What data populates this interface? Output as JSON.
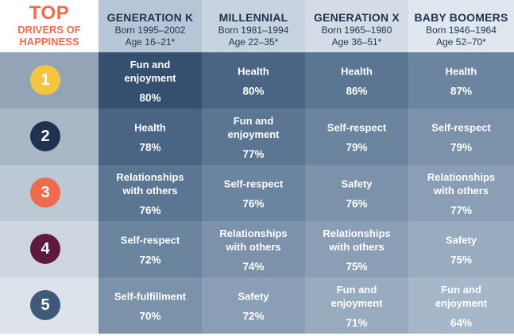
{
  "title": {
    "top": "TOP",
    "line1": "DRIVERS OF",
    "line2": "HAPPINESS"
  },
  "columns": [
    {
      "name": "GENERATION K",
      "born": "Born 1995–2002",
      "age": "Age 16–21*"
    },
    {
      "name": "MILLENNIAL",
      "born": "Born 1981–1994",
      "age": "Age 22–35*"
    },
    {
      "name": "GENERATION X",
      "born": "Born 1965–1980",
      "age": "Age 36–51*"
    },
    {
      "name": "BABY BOOMERS",
      "born": "Born 1946–1964",
      "age": "Age 52–70*"
    }
  ],
  "rows": [
    {
      "rank": "1",
      "badge_color": "#f5c542",
      "cells": [
        {
          "line1": "Fun and",
          "line2": "enjoyment",
          "value": "80%"
        },
        {
          "line1": "Health",
          "line2": "",
          "value": "80%"
        },
        {
          "line1": "Health",
          "line2": "",
          "value": "86%"
        },
        {
          "line1": "Health",
          "line2": "",
          "value": "87%"
        }
      ]
    },
    {
      "rank": "2",
      "badge_color": "#1e3250",
      "cells": [
        {
          "line1": "Health",
          "line2": "",
          "value": "78%"
        },
        {
          "line1": "Fun and",
          "line2": "enjoyment",
          "value": "77%"
        },
        {
          "line1": "Self-respect",
          "line2": "",
          "value": "79%"
        },
        {
          "line1": "Self-respect",
          "line2": "",
          "value": "79%"
        }
      ]
    },
    {
      "rank": "3",
      "badge_color": "#ee6b4d",
      "cells": [
        {
          "line1": "Relationships",
          "line2": "with others",
          "value": "76%"
        },
        {
          "line1": "Self-respect",
          "line2": "",
          "value": "76%"
        },
        {
          "line1": "Safety",
          "line2": "",
          "value": "76%"
        },
        {
          "line1": "Relationships",
          "line2": "with others",
          "value": "77%"
        }
      ]
    },
    {
      "rank": "4",
      "badge_color": "#5e1a3e",
      "cells": [
        {
          "line1": "Self-respect",
          "line2": "",
          "value": "72%"
        },
        {
          "line1": "Relationships",
          "line2": "with others",
          "value": "74%"
        },
        {
          "line1": "Relationships",
          "line2": "with others",
          "value": "75%"
        },
        {
          "line1": "Safety",
          "line2": "",
          "value": "75%"
        }
      ]
    },
    {
      "rank": "5",
      "badge_color": "#3e5a78",
      "cells": [
        {
          "line1": "Self-fulfillment",
          "line2": "",
          "value": "70%"
        },
        {
          "line1": "Safety",
          "line2": "",
          "value": "72%"
        },
        {
          "line1": "Fun and",
          "line2": "enjoyment",
          "value": "71%"
        },
        {
          "line1": "Fun and",
          "line2": "enjoyment",
          "value": "64%"
        }
      ]
    }
  ],
  "colors": {
    "accent": "#ee6b4d",
    "dark_blue": "#1f3350"
  }
}
